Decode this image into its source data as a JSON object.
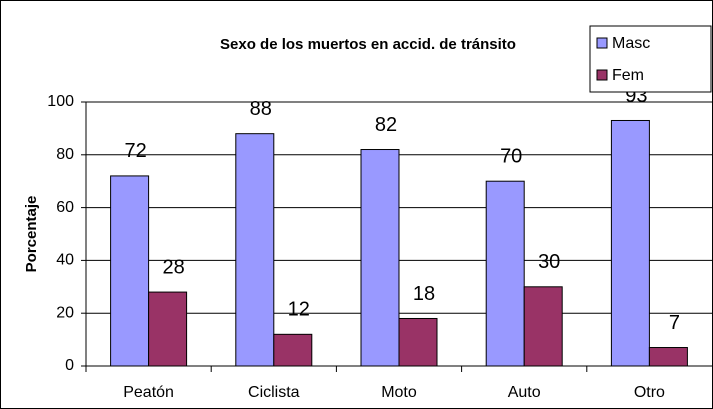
{
  "chart_data": {
    "type": "bar",
    "title": "Sexo de los muertos en accid. de tránsito",
    "y_label": "Porcentaje",
    "categories": [
      "Peatón",
      "Ciclista",
      "Moto",
      "Auto",
      "Otro"
    ],
    "series": [
      {
        "name": "Masc",
        "color": "#9999ff",
        "values": [
          72,
          88,
          82,
          70,
          93
        ]
      },
      {
        "name": "Fem",
        "color": "#993366",
        "values": [
          28,
          12,
          18,
          30,
          7
        ]
      }
    ],
    "ylim": [
      0,
      100
    ],
    "yticks": [
      0,
      20,
      40,
      60,
      80,
      100
    ],
    "grid": true,
    "legend": "top-right"
  }
}
